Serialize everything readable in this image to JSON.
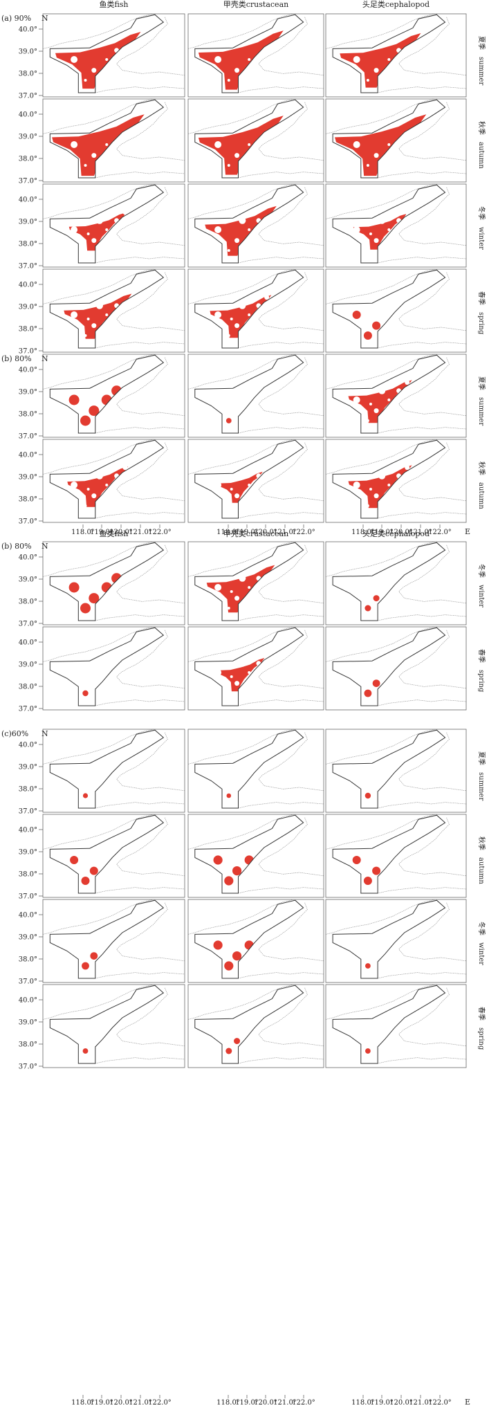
{
  "colors": {
    "habitat": "#e23b30",
    "outline": "#333333",
    "coast": "#9a9a9a",
    "frame": "#666666"
  },
  "columns": [
    "鱼类fish",
    "甲壳类crustacean",
    "头足类cephalopod"
  ],
  "lat_ticks": [
    "40.0°",
    "39.0°",
    "38.0°",
    "37.0°"
  ],
  "lat_unit": "N",
  "lon_ticks": [
    "118.0°",
    "119.0°",
    "120.0°",
    "121.0°",
    "122.0°"
  ],
  "lon_unit": "E",
  "blocks": [
    {
      "label": "(a) 90%",
      "seasons": [
        {
          "cn": "夏季",
          "en": "summer",
          "cells": [
            0.75,
            0.8,
            0.7
          ]
        },
        {
          "cn": "秋季",
          "en": "autumn",
          "cells": [
            0.85,
            0.8,
            0.85
          ]
        },
        {
          "cn": "冬季",
          "en": "winter",
          "cells": [
            0.35,
            0.6,
            0.3
          ]
        },
        {
          "cn": "春季",
          "en": "spring",
          "cells": [
            0.5,
            0.45,
            0.1
          ]
        }
      ]
    },
    {
      "label": "(b) 80%",
      "seasons": [
        {
          "cn": "夏季",
          "en": "summer",
          "cells": [
            0.15,
            0.03,
            0.45
          ]
        },
        {
          "cn": "秋季",
          "en": "autumn",
          "cells": [
            0.4,
            0.2,
            0.45
          ]
        }
      ]
    },
    {
      "label": "(b) 80%",
      "show_columns": true,
      "seasons": [
        {
          "cn": "冬季",
          "en": "winter",
          "cells": [
            0.15,
            0.55,
            0.05
          ]
        },
        {
          "cn": "春季",
          "en": "spring",
          "cells": [
            0.04,
            0.25,
            0.08
          ]
        }
      ]
    },
    {
      "label": "(c)60%",
      "seasons": [
        {
          "cn": "夏季",
          "en": "summer",
          "cells": [
            0.02,
            0.01,
            0.04
          ]
        },
        {
          "cn": "秋季",
          "en": "autumn",
          "cells": [
            0.1,
            0.12,
            0.1
          ]
        },
        {
          "cn": "冬季",
          "en": "winter",
          "cells": [
            0.08,
            0.12,
            0.03
          ]
        },
        {
          "cn": "春季",
          "en": "spring",
          "cells": [
            0.03,
            0.05,
            0.03
          ]
        }
      ]
    }
  ]
}
